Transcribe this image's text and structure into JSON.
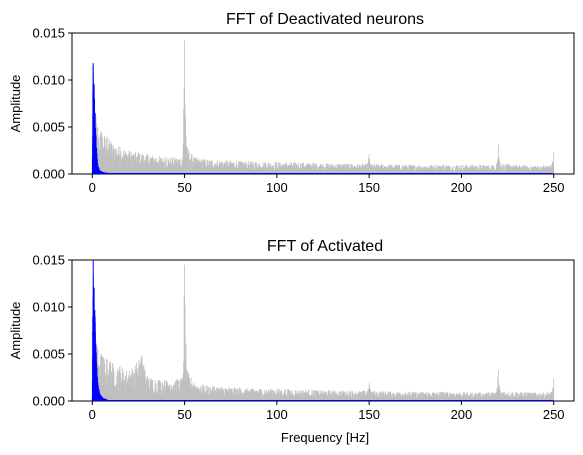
{
  "chart_data": [
    {
      "type": "line",
      "title": "FFT of Deactivated neurons",
      "xlabel": "",
      "ylabel": "Amplitude",
      "xlim": [
        -11,
        261
      ],
      "ylim": [
        0,
        0.015
      ],
      "xticks": [
        0,
        50,
        100,
        150,
        200,
        250
      ],
      "xtick_labels": [
        "0",
        "50",
        "100",
        "150",
        "200",
        "250"
      ],
      "yticks": [
        0,
        0.005,
        0.01,
        0.015
      ],
      "ytick_labels": [
        "0.000",
        "0.005",
        "0.010",
        "0.015"
      ],
      "grid": false,
      "series": [
        {
          "color": "#bfbfbf",
          "points": [
            [
              0,
              0.0115
            ],
            [
              1,
              0.0085
            ],
            [
              2,
              0.0062
            ],
            [
              3,
              0.005
            ],
            [
              5,
              0.0045
            ],
            [
              8,
              0.004
            ],
            [
              10,
              0.0035
            ],
            [
              15,
              0.0029
            ],
            [
              20,
              0.0025
            ],
            [
              25,
              0.0023
            ],
            [
              30,
              0.0021
            ],
            [
              40,
              0.0018
            ],
            [
              49,
              0.0018
            ],
            [
              50,
              0.0142
            ],
            [
              51,
              0.003
            ],
            [
              55,
              0.0018
            ],
            [
              60,
              0.0016
            ],
            [
              80,
              0.0014
            ],
            [
              100,
              0.0013
            ],
            [
              120,
              0.0012
            ],
            [
              140,
              0.0011
            ],
            [
              149,
              0.0011
            ],
            [
              150,
              0.0021
            ],
            [
              151,
              0.0011
            ],
            [
              170,
              0.001
            ],
            [
              190,
              0.001
            ],
            [
              210,
              0.001
            ],
            [
              219,
              0.001
            ],
            [
              220,
              0.0031
            ],
            [
              221,
              0.0011
            ],
            [
              240,
              0.0009
            ],
            [
              249,
              0.001
            ],
            [
              250,
              0.0023
            ]
          ]
        },
        {
          "color": "#0000ff",
          "points": [
            [
              0,
              0.0002
            ],
            [
              0.5,
              0.0118
            ],
            [
              1,
              0.0095
            ],
            [
              1.5,
              0.0065
            ],
            [
              2,
              0.004
            ],
            [
              2.5,
              0.0022
            ],
            [
              3,
              0.001
            ],
            [
              4,
              0.0004
            ],
            [
              6,
              0.0002
            ],
            [
              10,
              0.0001
            ],
            [
              50,
              0.0001
            ],
            [
              100,
              0.0
            ],
            [
              250,
              0.0
            ]
          ]
        }
      ]
    },
    {
      "type": "line",
      "title": "FFT of Activated",
      "xlabel": "Frequency [Hz]",
      "ylabel": "Amplitude",
      "xlim": [
        -11,
        261
      ],
      "ylim": [
        0,
        0.015
      ],
      "xticks": [
        0,
        50,
        100,
        150,
        200,
        250
      ],
      "xtick_labels": [
        "0",
        "50",
        "100",
        "150",
        "200",
        "250"
      ],
      "yticks": [
        0,
        0.005,
        0.01,
        0.015
      ],
      "ytick_labels": [
        "0.000",
        "0.005",
        "0.010",
        "0.015"
      ],
      "grid": false,
      "series": [
        {
          "color": "#bfbfbf",
          "points": [
            [
              0,
              0.009
            ],
            [
              1,
              0.008
            ],
            [
              2,
              0.0065
            ],
            [
              3,
              0.0055
            ],
            [
              5,
              0.005
            ],
            [
              8,
              0.0045
            ],
            [
              10,
              0.0042
            ],
            [
              15,
              0.0037
            ],
            [
              20,
              0.0032
            ],
            [
              27,
              0.0049
            ],
            [
              30,
              0.0026
            ],
            [
              40,
              0.0022
            ],
            [
              49,
              0.0025
            ],
            [
              50,
              0.0145
            ],
            [
              51,
              0.0034
            ],
            [
              55,
              0.002
            ],
            [
              60,
              0.0017
            ],
            [
              80,
              0.0014
            ],
            [
              100,
              0.0013
            ],
            [
              120,
              0.0012
            ],
            [
              140,
              0.0011
            ],
            [
              149,
              0.0011
            ],
            [
              150,
              0.0019
            ],
            [
              151,
              0.0011
            ],
            [
              170,
              0.001
            ],
            [
              190,
              0.001
            ],
            [
              210,
              0.0009
            ],
            [
              219,
              0.001
            ],
            [
              220,
              0.0033
            ],
            [
              221,
              0.0011
            ],
            [
              240,
              0.0009
            ],
            [
              249,
              0.001
            ],
            [
              250,
              0.0024
            ]
          ]
        },
        {
          "color": "#0000ff",
          "points": [
            [
              0,
              0.0003
            ],
            [
              0.5,
              0.015
            ],
            [
              1,
              0.012
            ],
            [
              1.5,
              0.009
            ],
            [
              2,
              0.006
            ],
            [
              2.5,
              0.0035
            ],
            [
              3,
              0.002
            ],
            [
              4,
              0.0008
            ],
            [
              6,
              0.0003
            ],
            [
              10,
              0.0001
            ],
            [
              50,
              0.0001
            ],
            [
              100,
              0.0
            ],
            [
              250,
              0.0
            ]
          ]
        }
      ]
    }
  ]
}
